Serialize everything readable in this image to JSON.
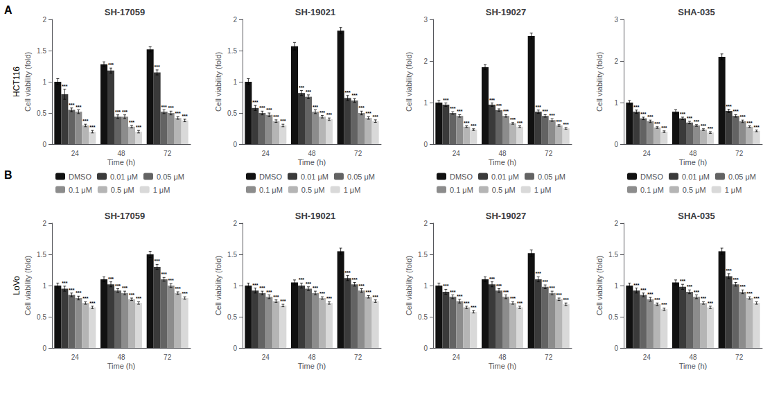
{
  "chart_data": [
    {
      "type": "bar",
      "title": "SH-17059",
      "xlabel": "Time (h)",
      "ylabel": "Cell viability (fold)",
      "annotations": [
        "A",
        "HCT116"
      ],
      "categories": [
        "24",
        "48",
        "72"
      ],
      "ylim": [
        0,
        2.0
      ],
      "yticks": [
        0,
        0.5,
        1,
        1.5,
        2
      ],
      "grid": false,
      "series": [
        {
          "name": "DMSO",
          "color": "#111111",
          "values": [
            1.0,
            1.28,
            1.52
          ],
          "errors": [
            0.05,
            0.04,
            0.04
          ]
        },
        {
          "name": "0.01 μM",
          "color": "#3a3a3a",
          "values": [
            0.8,
            1.18,
            1.15
          ],
          "errors": [
            0.08,
            0.04,
            0.04
          ],
          "annotations": [
            "***",
            "***",
            "***"
          ]
        },
        {
          "name": "0.05 μM",
          "color": "#636363",
          "values": [
            0.55,
            0.44,
            0.52
          ],
          "errors": [
            0.03,
            0.03,
            0.03
          ],
          "annotations": [
            "***",
            "***",
            "***"
          ]
        },
        {
          "name": "0.1 μM",
          "color": "#8c8c8c",
          "values": [
            0.52,
            0.44,
            0.5
          ],
          "errors": [
            0.03,
            0.03,
            0.03
          ],
          "annotations": [
            "***",
            "***",
            "***"
          ]
        },
        {
          "name": "0.5 μM",
          "color": "#b5b5b5",
          "values": [
            0.3,
            0.28,
            0.42
          ],
          "errors": [
            0.02,
            0.02,
            0.02
          ],
          "annotations": [
            "***",
            "***",
            "***"
          ]
        },
        {
          "name": "1 μM",
          "color": "#d9d9d9",
          "values": [
            0.2,
            0.2,
            0.38
          ],
          "errors": [
            0.02,
            0.02,
            0.02
          ],
          "annotations": [
            "***",
            "***",
            "***"
          ]
        }
      ]
    },
    {
      "type": "bar",
      "title": "SH-19021",
      "xlabel": "Time (h)",
      "ylabel": "Cell viability (fold)",
      "categories": [
        "24",
        "48",
        "72"
      ],
      "ylim": [
        0,
        2.0
      ],
      "yticks": [
        0,
        0.5,
        1,
        1.5,
        2
      ],
      "grid": false,
      "series": [
        {
          "name": "DMSO",
          "color": "#111111",
          "values": [
            1.0,
            1.57,
            1.82
          ],
          "errors": [
            0.05,
            0.06,
            0.05
          ]
        },
        {
          "name": "0.01 μM",
          "color": "#3a3a3a",
          "values": [
            0.58,
            0.82,
            0.74
          ],
          "errors": [
            0.04,
            0.04,
            0.04
          ],
          "annotations": [
            "***",
            "***",
            "***"
          ]
        },
        {
          "name": "0.05 μM",
          "color": "#636363",
          "values": [
            0.5,
            0.76,
            0.7
          ],
          "errors": [
            0.03,
            0.03,
            0.03
          ],
          "annotations": [
            "***",
            "***",
            "***"
          ]
        },
        {
          "name": "0.1 μM",
          "color": "#8c8c8c",
          "values": [
            0.47,
            0.52,
            0.5
          ],
          "errors": [
            0.03,
            0.03,
            0.03
          ],
          "annotations": [
            "***",
            "***",
            "***"
          ]
        },
        {
          "name": "0.5 μM",
          "color": "#b5b5b5",
          "values": [
            0.37,
            0.44,
            0.42
          ],
          "errors": [
            0.02,
            0.02,
            0.02
          ],
          "annotations": [
            "***",
            "***",
            "***"
          ]
        },
        {
          "name": "1 μM",
          "color": "#d9d9d9",
          "values": [
            0.3,
            0.4,
            0.37
          ],
          "errors": [
            0.02,
            0.02,
            0.02
          ],
          "annotations": [
            "***",
            "***",
            "***"
          ]
        }
      ]
    },
    {
      "type": "bar",
      "title": "SH-19027",
      "xlabel": "Time (h)",
      "ylabel": "Cell viability (fold)",
      "categories": [
        "24",
        "48",
        "72"
      ],
      "ylim": [
        0,
        3.0
      ],
      "yticks": [
        0,
        1,
        2,
        3
      ],
      "grid": false,
      "series": [
        {
          "name": "DMSO",
          "color": "#111111",
          "values": [
            1.0,
            1.85,
            2.6
          ],
          "errors": [
            0.05,
            0.06,
            0.07
          ]
        },
        {
          "name": "0.01 μM",
          "color": "#3a3a3a",
          "values": [
            0.95,
            0.95,
            0.78
          ],
          "errors": [
            0.04,
            0.04,
            0.04
          ],
          "annotations": [
            "***",
            "***",
            "***"
          ]
        },
        {
          "name": "0.05 μM",
          "color": "#636363",
          "values": [
            0.75,
            0.82,
            0.68
          ],
          "errors": [
            0.03,
            0.03,
            0.03
          ],
          "annotations": [
            "***",
            "***",
            "***"
          ]
        },
        {
          "name": "0.1 μM",
          "color": "#8c8c8c",
          "values": [
            0.68,
            0.68,
            0.58
          ],
          "errors": [
            0.03,
            0.03,
            0.03
          ],
          "annotations": [
            "***",
            "***",
            "***"
          ]
        },
        {
          "name": "0.5 μM",
          "color": "#b5b5b5",
          "values": [
            0.42,
            0.5,
            0.45
          ],
          "errors": [
            0.02,
            0.02,
            0.02
          ],
          "annotations": [
            "***",
            "***",
            "***"
          ]
        },
        {
          "name": "1 μM",
          "color": "#d9d9d9",
          "values": [
            0.35,
            0.42,
            0.38
          ],
          "errors": [
            0.02,
            0.02,
            0.02
          ],
          "annotations": [
            "***",
            "***",
            "***"
          ]
        }
      ]
    },
    {
      "type": "bar",
      "title": "SHA-035",
      "xlabel": "Time (h)",
      "ylabel": "Cell viability (fold)",
      "categories": [
        "24",
        "48",
        "72"
      ],
      "ylim": [
        0,
        3.0
      ],
      "yticks": [
        0,
        1,
        2,
        3
      ],
      "grid": false,
      "series": [
        {
          "name": "DMSO",
          "color": "#111111",
          "values": [
            1.0,
            0.78,
            2.1
          ],
          "errors": [
            0.05,
            0.05,
            0.07
          ]
        },
        {
          "name": "0.01 μM",
          "color": "#3a3a3a",
          "values": [
            0.78,
            0.62,
            0.8
          ],
          "errors": [
            0.04,
            0.03,
            0.04
          ],
          "annotations": [
            "***",
            "***",
            "***"
          ]
        },
        {
          "name": "0.05 μM",
          "color": "#636363",
          "values": [
            0.62,
            0.52,
            0.68
          ],
          "errors": [
            0.03,
            0.03,
            0.03
          ],
          "annotations": [
            "***",
            "***",
            "***"
          ]
        },
        {
          "name": "0.1 μM",
          "color": "#8c8c8c",
          "values": [
            0.55,
            0.45,
            0.55
          ],
          "errors": [
            0.03,
            0.02,
            0.03
          ],
          "annotations": [
            "***",
            "***",
            "***"
          ]
        },
        {
          "name": "0.5 μM",
          "color": "#b5b5b5",
          "values": [
            0.4,
            0.35,
            0.42
          ],
          "errors": [
            0.02,
            0.02,
            0.02
          ],
          "annotations": [
            "***",
            "***",
            "***"
          ]
        },
        {
          "name": "1 μM",
          "color": "#d9d9d9",
          "values": [
            0.3,
            0.28,
            0.32
          ],
          "errors": [
            0.02,
            0.02,
            0.02
          ],
          "annotations": [
            "***",
            "***",
            "***"
          ]
        }
      ]
    },
    {
      "type": "bar",
      "title": "SH-17059",
      "xlabel": "Time (h)",
      "ylabel": "Cell viability (fold)",
      "annotations": [
        "B",
        "LoVo"
      ],
      "legend": "top",
      "categories": [
        "24",
        "48",
        "72"
      ],
      "ylim": [
        0,
        2.0
      ],
      "yticks": [
        0,
        0.5,
        1,
        1.5,
        2
      ],
      "grid": false,
      "series": [
        {
          "name": "DMSO",
          "color": "#111111",
          "values": [
            1.0,
            1.1,
            1.5
          ],
          "errors": [
            0.04,
            0.04,
            0.05
          ]
        },
        {
          "name": "0.01 μM",
          "color": "#3a3a3a",
          "values": [
            0.95,
            1.02,
            1.3
          ],
          "errors": [
            0.04,
            0.04,
            0.04
          ],
          "annotations": [
            "***",
            "***",
            "***"
          ]
        },
        {
          "name": "0.05 μM",
          "color": "#636363",
          "values": [
            0.85,
            0.92,
            1.1
          ],
          "errors": [
            0.03,
            0.03,
            0.03
          ],
          "annotations": [
            "***",
            "***",
            "***"
          ]
        },
        {
          "name": "0.1 μM",
          "color": "#8c8c8c",
          "values": [
            0.8,
            0.88,
            1.0
          ],
          "errors": [
            0.03,
            0.03,
            0.03
          ],
          "annotations": [
            "***",
            "***",
            "***"
          ]
        },
        {
          "name": "0.5 μM",
          "color": "#b5b5b5",
          "values": [
            0.72,
            0.78,
            0.88
          ],
          "errors": [
            0.02,
            0.02,
            0.02
          ],
          "annotations": [
            "***",
            "***",
            "***"
          ]
        },
        {
          "name": "1 μM",
          "color": "#d9d9d9",
          "values": [
            0.65,
            0.72,
            0.8
          ],
          "errors": [
            0.02,
            0.02,
            0.02
          ],
          "annotations": [
            "***",
            "***",
            "***"
          ]
        }
      ]
    },
    {
      "type": "bar",
      "title": "SH-19021",
      "xlabel": "Time (h)",
      "ylabel": "Cell viability (fold)",
      "legend": "top",
      "categories": [
        "24",
        "48",
        "72"
      ],
      "ylim": [
        0,
        2.0
      ],
      "yticks": [
        0,
        0.5,
        1,
        1.5,
        2
      ],
      "grid": false,
      "series": [
        {
          "name": "DMSO",
          "color": "#111111",
          "values": [
            1.0,
            1.05,
            1.55
          ],
          "errors": [
            0.04,
            0.04,
            0.05
          ]
        },
        {
          "name": "0.01 μM",
          "color": "#3a3a3a",
          "values": [
            0.92,
            1.0,
            1.12
          ],
          "errors": [
            0.04,
            0.04,
            0.04
          ],
          "annotations": [
            "***",
            "***",
            "***"
          ]
        },
        {
          "name": "0.05 μM",
          "color": "#636363",
          "values": [
            0.88,
            0.95,
            1.02
          ],
          "errors": [
            0.03,
            0.03,
            0.03
          ],
          "annotations": [
            "***",
            "***",
            "***"
          ]
        },
        {
          "name": "0.1 μM",
          "color": "#8c8c8c",
          "values": [
            0.82,
            0.88,
            0.92
          ],
          "errors": [
            0.03,
            0.03,
            0.03
          ],
          "annotations": [
            "***",
            "***",
            "***"
          ]
        },
        {
          "name": "0.5 μM",
          "color": "#b5b5b5",
          "values": [
            0.75,
            0.8,
            0.82
          ],
          "errors": [
            0.02,
            0.02,
            0.02
          ],
          "annotations": [
            "***",
            "***",
            "***"
          ]
        },
        {
          "name": "1 μM",
          "color": "#d9d9d9",
          "values": [
            0.68,
            0.72,
            0.75
          ],
          "errors": [
            0.02,
            0.02,
            0.02
          ],
          "annotations": [
            "***",
            "***",
            "***"
          ]
        }
      ]
    },
    {
      "type": "bar",
      "title": "SH-19027",
      "xlabel": "Time (h)",
      "ylabel": "Cell viability (fold)",
      "legend": "top",
      "categories": [
        "24",
        "48",
        "72"
      ],
      "ylim": [
        0,
        2.0
      ],
      "yticks": [
        0,
        0.5,
        1,
        1.5,
        2
      ],
      "grid": false,
      "series": [
        {
          "name": "DMSO",
          "color": "#111111",
          "values": [
            1.0,
            1.1,
            1.52
          ],
          "errors": [
            0.04,
            0.04,
            0.05
          ]
        },
        {
          "name": "0.01 μM",
          "color": "#3a3a3a",
          "values": [
            0.9,
            1.02,
            1.1
          ],
          "errors": [
            0.04,
            0.04,
            0.04
          ],
          "annotations": [
            "***",
            "***",
            "***"
          ]
        },
        {
          "name": "0.05 μM",
          "color": "#636363",
          "values": [
            0.82,
            0.92,
            0.98
          ],
          "errors": [
            0.03,
            0.03,
            0.03
          ],
          "annotations": [
            "***",
            "***",
            "***"
          ]
        },
        {
          "name": "0.1 μM",
          "color": "#8c8c8c",
          "values": [
            0.75,
            0.82,
            0.88
          ],
          "errors": [
            0.03,
            0.03,
            0.03
          ],
          "annotations": [
            "***",
            "***",
            "***"
          ]
        },
        {
          "name": "0.5 μM",
          "color": "#b5b5b5",
          "values": [
            0.65,
            0.72,
            0.78
          ],
          "errors": [
            0.02,
            0.02,
            0.02
          ],
          "annotations": [
            "***",
            "***",
            "***"
          ]
        },
        {
          "name": "1 μM",
          "color": "#d9d9d9",
          "values": [
            0.58,
            0.65,
            0.7
          ],
          "errors": [
            0.02,
            0.02,
            0.02
          ],
          "annotations": [
            "***",
            "***",
            "***"
          ]
        }
      ]
    },
    {
      "type": "bar",
      "title": "SHA-035",
      "xlabel": "Time (h)",
      "ylabel": "Cell viability (fold)",
      "legend": "top",
      "categories": [
        "24",
        "48",
        "72"
      ],
      "ylim": [
        0,
        2.0
      ],
      "yticks": [
        0,
        0.5,
        1,
        1.5,
        2
      ],
      "grid": false,
      "series": [
        {
          "name": "DMSO",
          "color": "#111111",
          "values": [
            1.0,
            1.05,
            1.55
          ],
          "errors": [
            0.04,
            0.04,
            0.05
          ]
        },
        {
          "name": "0.01 μM",
          "color": "#3a3a3a",
          "values": [
            0.92,
            0.98,
            1.15
          ],
          "errors": [
            0.04,
            0.04,
            0.04
          ],
          "annotations": [
            "***",
            "***",
            "***"
          ]
        },
        {
          "name": "0.05 μM",
          "color": "#636363",
          "values": [
            0.85,
            0.9,
            1.02
          ],
          "errors": [
            0.03,
            0.03,
            0.03
          ],
          "annotations": [
            "***",
            "***",
            "***"
          ]
        },
        {
          "name": "0.1 μM",
          "color": "#8c8c8c",
          "values": [
            0.78,
            0.82,
            0.9
          ],
          "errors": [
            0.03,
            0.03,
            0.03
          ],
          "annotations": [
            "***",
            "***",
            "***"
          ]
        },
        {
          "name": "0.5 μM",
          "color": "#b5b5b5",
          "values": [
            0.7,
            0.72,
            0.8
          ],
          "errors": [
            0.02,
            0.02,
            0.02
          ],
          "annotations": [
            "***",
            "***",
            "***"
          ]
        },
        {
          "name": "1 μM",
          "color": "#d9d9d9",
          "values": [
            0.62,
            0.65,
            0.72
          ],
          "errors": [
            0.02,
            0.02,
            0.02
          ],
          "annotations": [
            "***",
            "***",
            "***"
          ]
        }
      ]
    }
  ]
}
